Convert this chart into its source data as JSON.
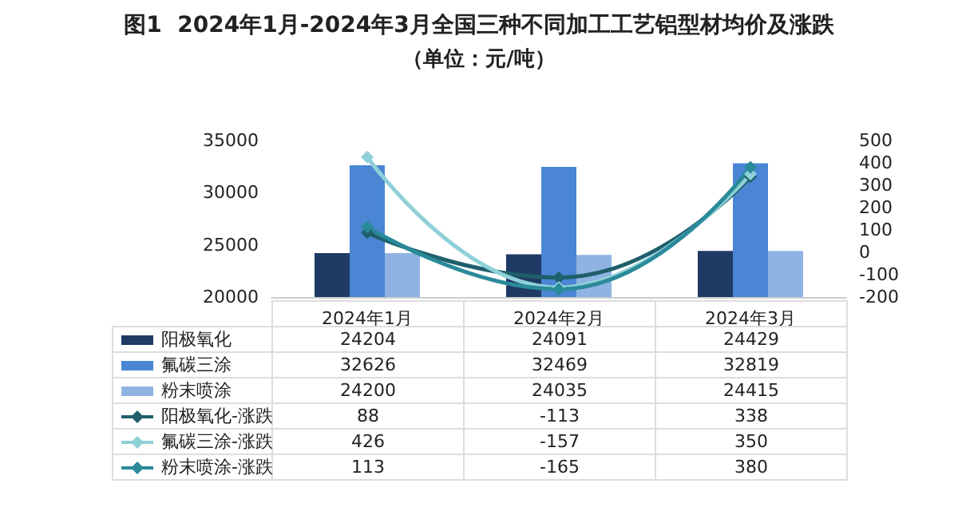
{
  "chart_data": {
    "type": "bar",
    "title": "图1  2024年1月-2024年3月全国三种不同加工工艺铝型材均价及涨跌",
    "subtitle": "（单位：元/吨）",
    "categories": [
      "2024年1月",
      "2024年2月",
      "2024年3月"
    ],
    "series": [
      {
        "name": "阳极氧化",
        "color": "#1f3a64",
        "values": [
          24204,
          24091,
          24429
        ]
      },
      {
        "name": "氟碳三涂",
        "color": "#4a86d4",
        "values": [
          32626,
          32469,
          32819
        ]
      },
      {
        "name": "粉末喷涂",
        "color": "#8fb4e3",
        "values": [
          24200,
          24035,
          24415
        ]
      },
      {
        "name": "阳极氧化-涨跌",
        "type": "line",
        "axis": "y2",
        "color": "#1f5f6b",
        "values": [
          88,
          -113,
          338
        ]
      },
      {
        "name": "氟碳三涂-涨跌",
        "type": "line",
        "axis": "y2",
        "color": "#8fd0d8",
        "values": [
          426,
          -157,
          350
        ]
      },
      {
        "name": "粉末喷涂-涨跌",
        "type": "line",
        "axis": "y2",
        "color": "#2a8a9a",
        "values": [
          113,
          -165,
          380
        ]
      }
    ],
    "ylim": [
      20000,
      35000
    ],
    "yticks": [
      20000,
      25000,
      30000,
      35000
    ],
    "y2lim": [
      -200,
      500
    ],
    "y2ticks": [
      -200,
      -100,
      0,
      100,
      200,
      300,
      400,
      500
    ],
    "marker": "diamond",
    "line_style": "solid",
    "grid": false,
    "legend": "bottom",
    "data_labels": true
  }
}
